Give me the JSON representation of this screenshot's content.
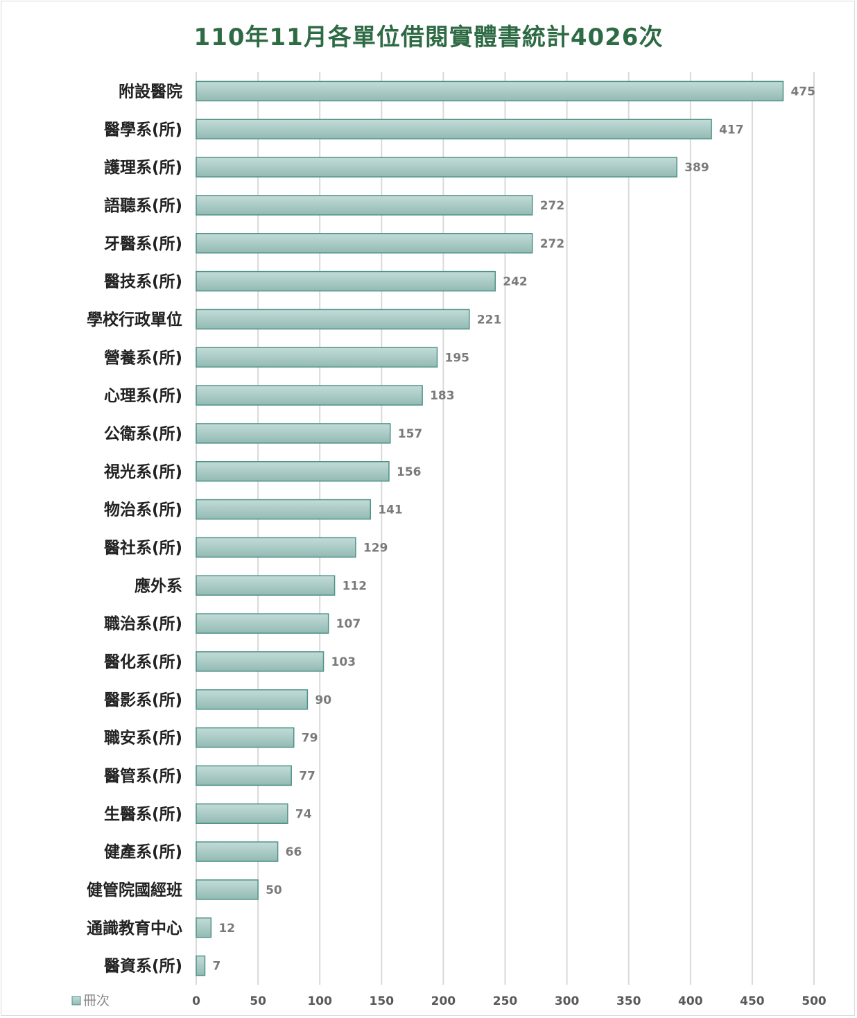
{
  "chart_data": {
    "type": "bar",
    "orientation": "horizontal",
    "title": "110年11月各單位借閱實體書統計4026次",
    "categories": [
      "附設醫院",
      "醫學系(所)",
      "護理系(所)",
      "語聽系(所)",
      "牙醫系(所)",
      "醫技系(所)",
      "學校行政單位",
      "營養系(所)",
      "心理系(所)",
      "公衛系(所)",
      "視光系(所)",
      "物治系(所)",
      "醫社系(所)",
      "應外系",
      "職治系(所)",
      "醫化系(所)",
      "醫影系(所)",
      "職安系(所)",
      "醫管系(所)",
      "生醫系(所)",
      "健產系(所)",
      "健管院國經班",
      "通識教育中心",
      "醫資系(所)"
    ],
    "series": [
      {
        "name": "冊次",
        "values": [
          475,
          417,
          389,
          272,
          272,
          242,
          221,
          195,
          183,
          157,
          156,
          141,
          129,
          112,
          107,
          103,
          90,
          79,
          77,
          74,
          66,
          50,
          12,
          7
        ]
      }
    ],
    "xlim": [
      0,
      500
    ],
    "xticks": [
      "0",
      "50",
      "100",
      "150",
      "200",
      "250",
      "300",
      "350",
      "400",
      "450",
      "500"
    ],
    "grid": true,
    "legend_position": "bottom-left",
    "colors": {
      "bar_fill": "#a9cbc6",
      "bar_stroke": "#4f9389",
      "grid": "#d9d9d9",
      "title": "#2e6b44"
    }
  }
}
